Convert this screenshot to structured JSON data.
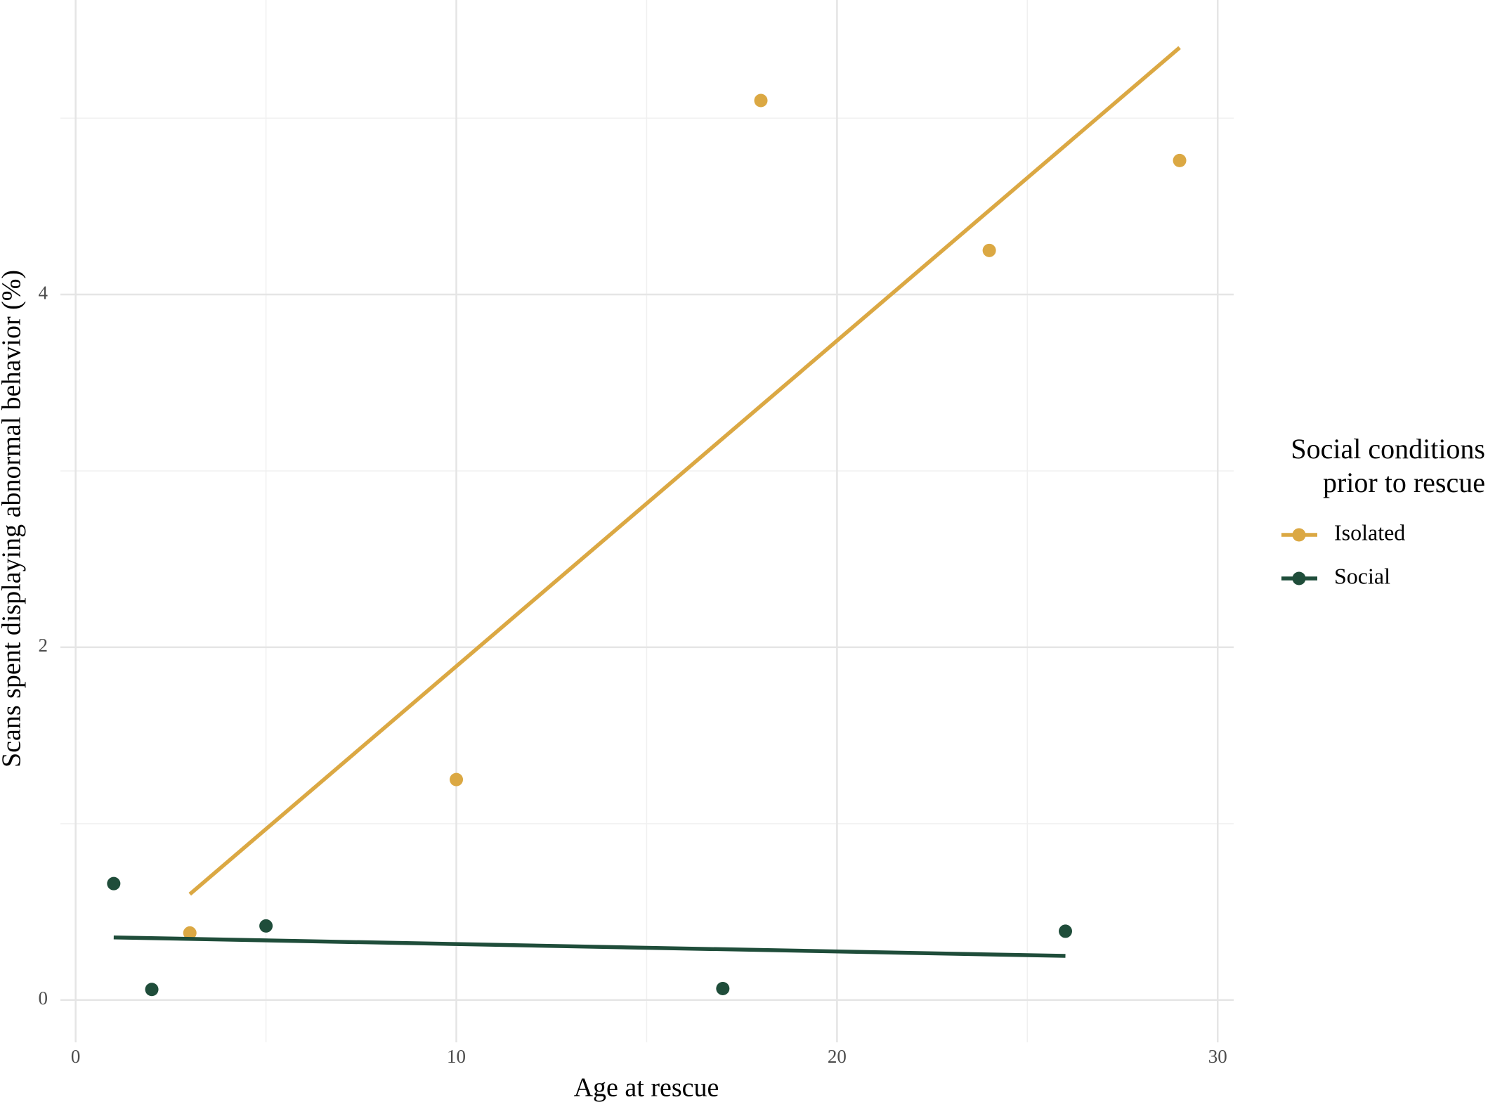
{
  "chart_data": {
    "type": "scatter",
    "x_label": "Age at rescue",
    "y_label": "Scans spent displaying abnormal behavior (%)",
    "legend_title": [
      "Social conditions",
      "prior to rescue"
    ],
    "xlim": [
      -0.4,
      30.42
    ],
    "ylim": [
      -0.24,
      5.67
    ],
    "xticks": [
      0,
      10,
      20,
      30
    ],
    "yticks": [
      0,
      2,
      4
    ],
    "minor_xticks": [
      5,
      15,
      25
    ],
    "minor_yticks": [
      1,
      3,
      5
    ],
    "grid": true,
    "legend": "right",
    "series": [
      {
        "name": "Isolated",
        "color": "#dba843",
        "x": [
          3,
          10,
          18,
          24,
          29
        ],
        "values": [
          0.38,
          1.25,
          5.1,
          4.25,
          4.76
        ],
        "trend": {
          "x": [
            3,
            29
          ],
          "values": [
            0.6,
            5.4
          ]
        }
      },
      {
        "name": "Social",
        "color": "#1f4d3a",
        "x": [
          1,
          2,
          5,
          17,
          26
        ],
        "values": [
          0.66,
          0.06,
          0.42,
          0.065,
          0.39
        ],
        "trend": {
          "x": [
            1,
            26
          ],
          "values": [
            0.355,
            0.25
          ]
        }
      }
    ]
  }
}
